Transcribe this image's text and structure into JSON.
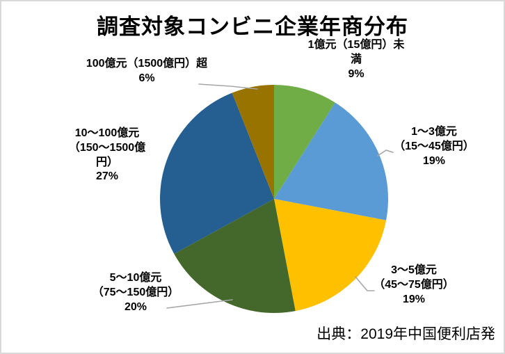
{
  "canvas": {
    "background": "#FFFFFF",
    "border_color": "#D9D9D9"
  },
  "title": "調査対象コンビニ企業年商分布",
  "source_note": "出典：2019年中国便利店発",
  "chart_data": {
    "type": "pie",
    "title": "調査対象コンビニ企業年商分布",
    "start_angle_deg": 0,
    "direction": "clockwise",
    "legend_position": "none",
    "data_labels": "outside, category name + percent, bold black",
    "leader_line_color": "#A6A6A6",
    "slices": [
      {
        "label": "1億元（15億円）未満",
        "percent": 9,
        "color": "#70AD47"
      },
      {
        "label": "1～3億元（15～45億円）",
        "percent": 19,
        "color": "#5B9BD5"
      },
      {
        "label": "3～5億元（45～75億円）",
        "percent": 19,
        "color": "#FFC000"
      },
      {
        "label": "5～10億元（75～150億円）",
        "percent": 20,
        "color": "#44682C"
      },
      {
        "label": "10～100億元（150～1500億円）",
        "percent": 27,
        "color": "#255F91"
      },
      {
        "label": "100億元（1500億円）超",
        "percent": 6,
        "color": "#997300"
      }
    ],
    "source_note": "出典：2019年中国便利店発"
  },
  "labels": {
    "top": "1億元（15億円）未\n満\n9%",
    "upper_right": "1～3億元\n（15～45億円）\n19%",
    "lower_right": "3～5億元\n（45～75億円）\n19%",
    "lower_left": "5～10億元\n（75～150億円）\n20%",
    "left": "10～100億元\n（150～1500億\n円）\n27%",
    "upper_left": "100億元（1500億円）超\n6%"
  }
}
